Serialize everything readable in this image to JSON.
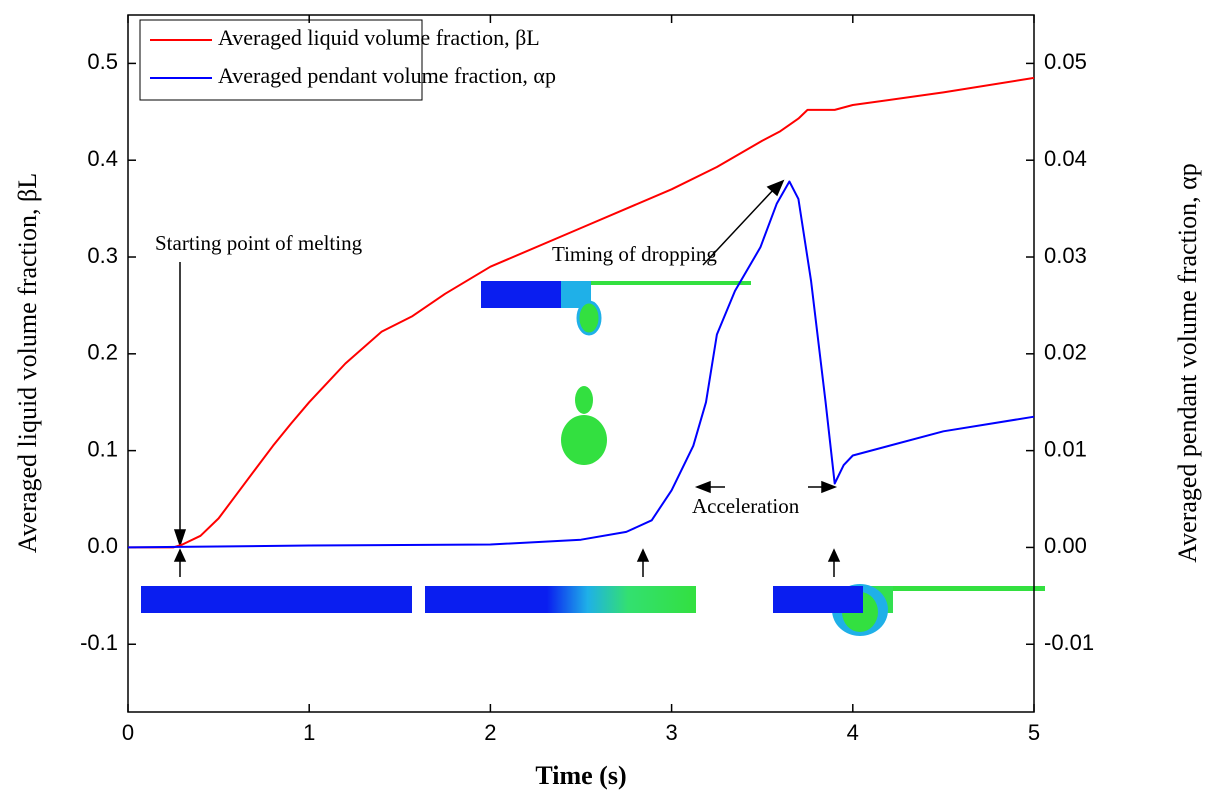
{
  "chart_data": {
    "type": "line",
    "xlabel": "Time (s)",
    "ylabel": "Averaged liquid volume fraction, βL",
    "y2label": "Averaged pendant volume fraction, αp",
    "xlim": [
      0,
      5
    ],
    "xticks": [
      0,
      1,
      2,
      3,
      4,
      5
    ],
    "ylim": [
      -0.17,
      0.55
    ],
    "yticks": [
      -0.1,
      {
        "value": 0,
        "label": "0.0"
      },
      0.1,
      0.2,
      0.3,
      0.4,
      0.5
    ],
    "y2lim": [
      -0.017,
      0.055
    ],
    "y2ticks": [
      -0.01,
      {
        "value": 0,
        "label": "0.00"
      },
      0.01,
      0.02,
      0.03,
      0.04,
      0.05
    ],
    "legend": "upper left",
    "series": [
      {
        "name": "Averaged liquid volume fraction, βL",
        "color": "#ff0000",
        "x": [
          0,
          0.25,
          0.3,
          0.4,
          0.5,
          0.6,
          0.7,
          0.8,
          0.9,
          1.0,
          1.2,
          1.4,
          1.57,
          1.75,
          2.0,
          2.5,
          3.0,
          3.25,
          3.5,
          3.6,
          3.7,
          3.75,
          3.9,
          4.0,
          4.5,
          5.0
        ],
        "values": [
          0,
          0,
          0.003,
          0.012,
          0.03,
          0.055,
          0.08,
          0.105,
          0.128,
          0.15,
          0.19,
          0.223,
          0.239,
          0.262,
          0.29,
          0.33,
          0.37,
          0.393,
          0.42,
          0.43,
          0.443,
          0.452,
          0.452,
          0.457,
          0.47,
          0.485
        ]
      },
      {
        "name": "Averaged pendant volume fraction, αp",
        "color": "#0000ff",
        "axis": "y2",
        "x": [
          0,
          1,
          2,
          2.5,
          2.75,
          2.89,
          3.0,
          3.12,
          3.19,
          3.25,
          3.35,
          3.49,
          3.58,
          3.65,
          3.7,
          3.77,
          3.85,
          3.9,
          3.95,
          4.0,
          4.5,
          5.0
        ],
        "values": [
          0,
          0.0002,
          0.0003,
          0.0008,
          0.0016,
          0.0028,
          0.0059,
          0.0105,
          0.015,
          0.022,
          0.0265,
          0.031,
          0.0355,
          0.0378,
          0.036,
          0.0275,
          0.015,
          0.0066,
          0.0085,
          0.0095,
          0.012,
          0.0135
        ]
      }
    ],
    "annotations": [
      "Starting point of melting",
      "Timing of dropping",
      "Acceleration"
    ]
  }
}
